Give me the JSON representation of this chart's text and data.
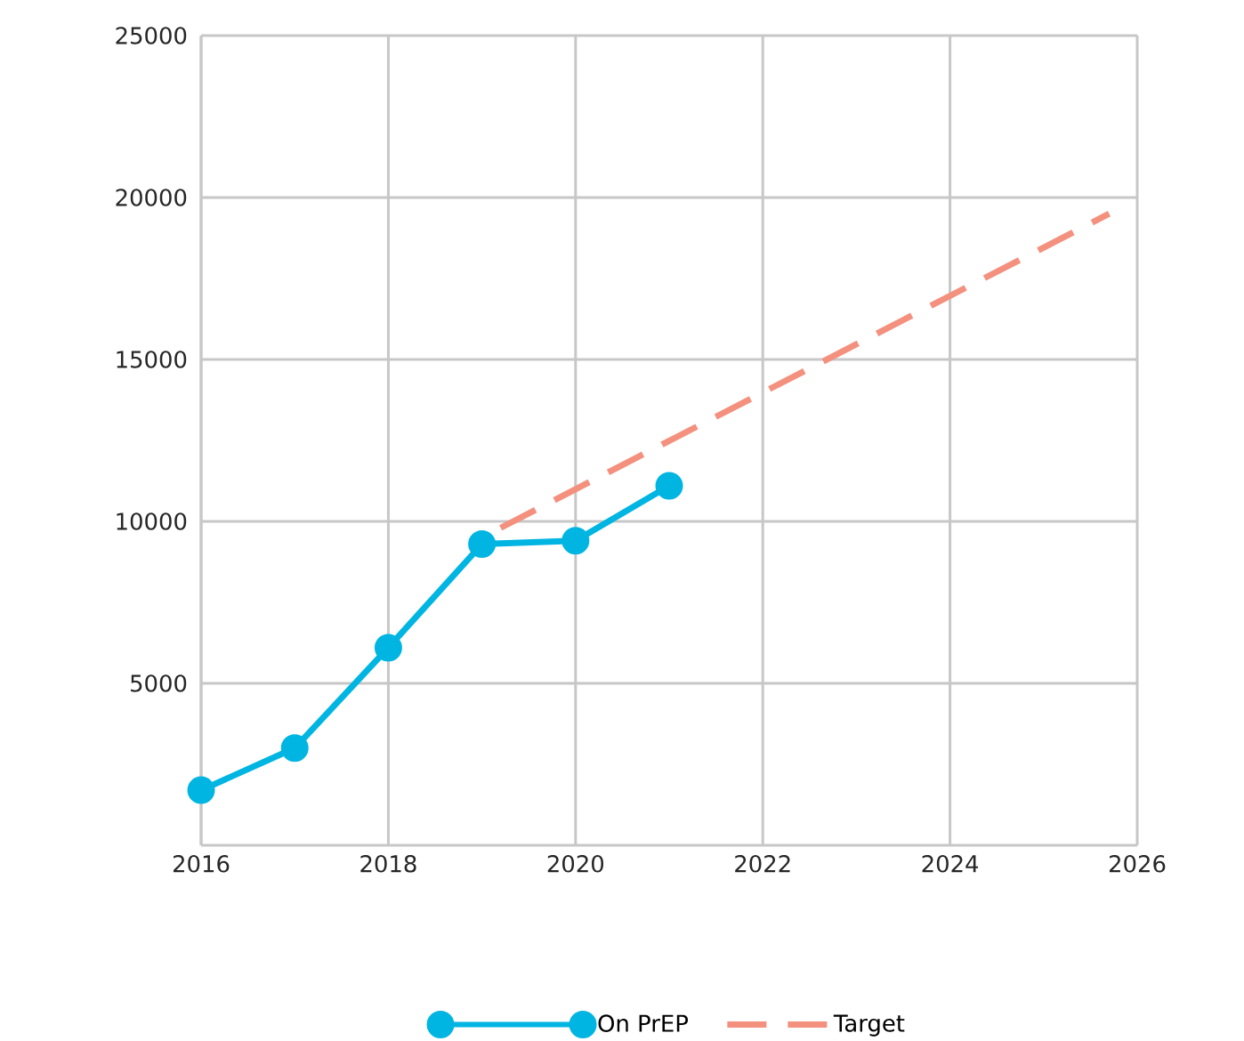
{
  "chart_data": {
    "type": "line",
    "x": [
      2016,
      2017,
      2018,
      2019,
      2020,
      2021
    ],
    "series": [
      {
        "name": "On PrEP",
        "color": "#00b5e2",
        "values": [
          1700,
          3000,
          6100,
          9300,
          9400,
          11100
        ],
        "marker": "circle",
        "line_style": "solid"
      },
      {
        "name": "Target",
        "color": "#f4907e",
        "x": [
          2019.2,
          2025.7
        ],
        "values": [
          9800,
          19500
        ],
        "marker": "none",
        "line_style": "dashed"
      }
    ],
    "xlim": [
      2016,
      2026
    ],
    "xticks": [
      2016,
      2018,
      2020,
      2022,
      2024,
      2026
    ],
    "ylim": [
      0,
      25000
    ],
    "yticks": [
      5000,
      10000,
      15000,
      20000,
      25000
    ],
    "grid": true,
    "legend": "bottom"
  }
}
